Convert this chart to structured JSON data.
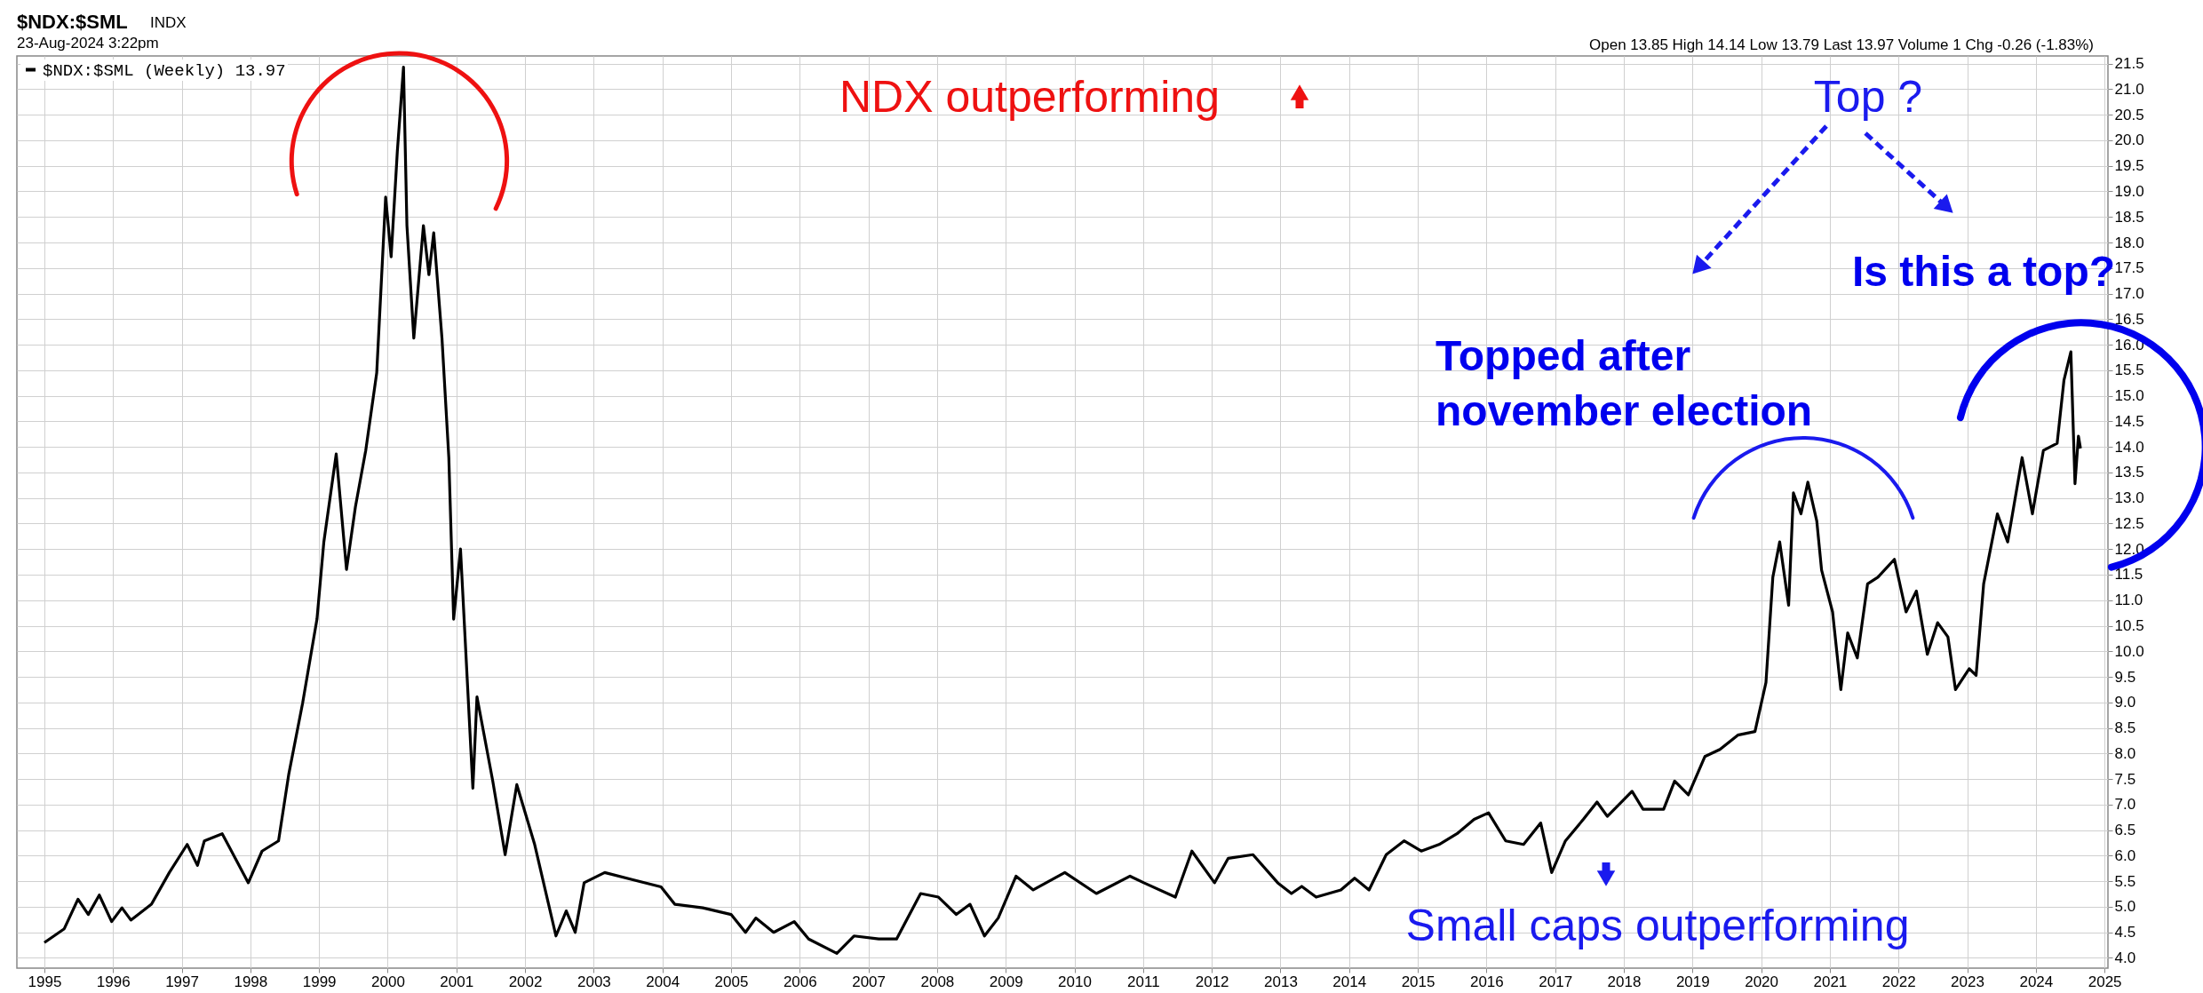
{
  "chart_data": {
    "type": "line",
    "title": "$NDX:$SML",
    "subtitle": "INDX",
    "annotations": [
      "23-Aug-2024 3:22pm",
      "Open 13.85  High 14.14  Low 13.79  Last 13.97  Volume 1  Chg -0.26 (-1.83%)",
      "NDX outperforming",
      "Top ?",
      "Topped after\nnovember election",
      "Is this a top?",
      "Small caps outperforming"
    ],
    "x": [
      1995.0,
      1995.29,
      1995.49,
      1995.64,
      1995.8,
      1995.98,
      1996.13,
      1996.26,
      1996.56,
      1996.82,
      1997.08,
      1997.23,
      1997.33,
      1997.59,
      1997.97,
      1998.17,
      1998.41,
      1998.56,
      1998.76,
      1998.97,
      1999.07,
      1999.25,
      1999.4,
      1999.53,
      1999.68,
      1999.84,
      1999.97,
      2000.05,
      2000.14,
      2000.23,
      2000.28,
      2000.38,
      2000.52,
      2000.6,
      2000.67,
      2000.79,
      2000.89,
      2000.96,
      2001.06,
      2001.24,
      2001.3,
      2001.53,
      2001.71,
      2001.88,
      2002.14,
      2002.45,
      2002.6,
      2002.73,
      2002.86,
      2003.16,
      2003.57,
      2003.98,
      2004.18,
      2004.59,
      2005.0,
      2005.21,
      2005.36,
      2005.62,
      2005.92,
      2006.13,
      2006.54,
      2006.79,
      2007.15,
      2007.41,
      2007.76,
      2008.02,
      2008.28,
      2008.48,
      2008.69,
      2008.89,
      2009.15,
      2009.4,
      2009.86,
      2010.32,
      2010.81,
      2011.01,
      2011.47,
      2011.71,
      2012.04,
      2012.24,
      2012.6,
      2012.96,
      2013.16,
      2013.31,
      2013.52,
      2013.88,
      2014.08,
      2014.29,
      2014.54,
      2014.8,
      2015.05,
      2015.31,
      2015.57,
      2015.82,
      2016.03,
      2016.28,
      2016.54,
      2016.79,
      2016.95,
      2017.15,
      2017.41,
      2017.61,
      2017.76,
      2018.12,
      2018.28,
      2018.58,
      2018.74,
      2018.94,
      2019.18,
      2019.4,
      2019.66,
      2019.91,
      2020.07,
      2020.17,
      2020.27,
      2020.4,
      2020.47,
      2020.58,
      2020.68,
      2020.81,
      2020.88,
      2021.04,
      2021.16,
      2021.26,
      2021.4,
      2021.55,
      2021.7,
      2021.94,
      2022.11,
      2022.26,
      2022.42,
      2022.57,
      2022.72,
      2022.83,
      2023.03,
      2023.13,
      2023.24,
      2023.44,
      2023.59,
      2023.8,
      2023.95,
      2024.11,
      2024.31,
      2024.41,
      2024.51,
      2024.57,
      2024.62,
      2024.65
    ],
    "series": [
      {
        "name": "$NDX:$SML (Weekly) 13.97",
        "color": "#000000",
        "values": [
          4.3,
          4.57,
          5.15,
          4.85,
          5.23,
          4.71,
          4.98,
          4.74,
          5.05,
          5.67,
          6.22,
          5.81,
          6.29,
          6.43,
          5.47,
          6.09,
          6.29,
          7.6,
          8.98,
          10.63,
          12.14,
          13.86,
          11.6,
          12.83,
          13.93,
          15.45,
          18.89,
          17.72,
          19.78,
          21.43,
          18.33,
          16.13,
          18.33,
          17.37,
          18.19,
          16.13,
          13.79,
          10.63,
          12.0,
          7.32,
          9.11,
          7.46,
          6.02,
          7.39,
          6.22,
          4.43,
          4.92,
          4.5,
          5.47,
          5.67,
          5.53,
          5.39,
          5.05,
          4.98,
          4.85,
          4.5,
          4.78,
          4.5,
          4.71,
          4.37,
          4.09,
          4.43,
          4.37,
          4.37,
          5.26,
          5.19,
          4.85,
          5.05,
          4.43,
          4.78,
          5.6,
          5.33,
          5.67,
          5.26,
          5.6,
          5.47,
          5.19,
          6.09,
          5.47,
          5.95,
          6.02,
          5.47,
          5.26,
          5.4,
          5.19,
          5.33,
          5.56,
          5.33,
          6.02,
          6.29,
          6.09,
          6.22,
          6.43,
          6.71,
          6.84,
          6.29,
          6.22,
          6.64,
          5.67,
          6.29,
          6.71,
          7.05,
          6.77,
          7.26,
          6.91,
          6.91,
          7.46,
          7.19,
          7.94,
          8.08,
          8.36,
          8.43,
          9.39,
          11.45,
          12.14,
          10.9,
          13.1,
          12.69,
          13.31,
          12.55,
          11.59,
          10.77,
          9.25,
          10.36,
          9.87,
          11.32,
          11.45,
          11.8,
          10.77,
          11.18,
          9.94,
          10.56,
          10.28,
          9.25,
          9.66,
          9.53,
          11.32,
          12.69,
          12.14,
          13.79,
          12.69,
          13.93,
          14.07,
          15.31,
          15.86,
          13.28,
          14.21,
          13.97
        ]
      }
    ],
    "xlim": [
      1994.6,
      2025.05
    ],
    "xticks": [
      1995,
      1996,
      1997,
      1998,
      1999,
      2000,
      2001,
      2002,
      2003,
      2004,
      2005,
      2006,
      2007,
      2008,
      2009,
      2010,
      2011,
      2012,
      2013,
      2014,
      2015,
      2016,
      2017,
      2018,
      2019,
      2020,
      2021,
      2022,
      2023,
      2024,
      2025
    ],
    "ylim": [
      3.8,
      21.65
    ],
    "yticks": [
      {
        "value": 4,
        "label": "4.0"
      },
      4.5,
      {
        "value": 5,
        "label": "5.0"
      },
      5.5,
      {
        "value": 6,
        "label": "6.0"
      },
      6.5,
      {
        "value": 7,
        "label": "7.0"
      },
      7.5,
      {
        "value": 8,
        "label": "8.0"
      },
      8.5,
      {
        "value": 9,
        "label": "9.0"
      },
      9.5,
      {
        "value": 10,
        "label": "10.0"
      },
      10.5,
      {
        "value": 11,
        "label": "11.0"
      },
      11.5,
      {
        "value": 12,
        "label": "12.0"
      },
      12.5,
      {
        "value": 13,
        "label": "13.0"
      },
      13.5,
      {
        "value": 14,
        "label": "14.0"
      },
      14.5,
      {
        "value": 15,
        "label": "15.0"
      },
      15.5,
      {
        "value": 16,
        "label": "16.0"
      },
      16.5,
      {
        "value": 17,
        "label": "17.0"
      },
      17.5,
      {
        "value": 18,
        "label": "18.0"
      },
      18.5,
      {
        "value": 19,
        "label": "19.0"
      },
      19.5,
      {
        "value": 20,
        "label": "20.0"
      },
      20.5,
      {
        "value": 21,
        "label": "21.0"
      },
      21.5
    ],
    "grid": true,
    "legend": "top left",
    "marker": "none",
    "line_style": "solid"
  }
}
